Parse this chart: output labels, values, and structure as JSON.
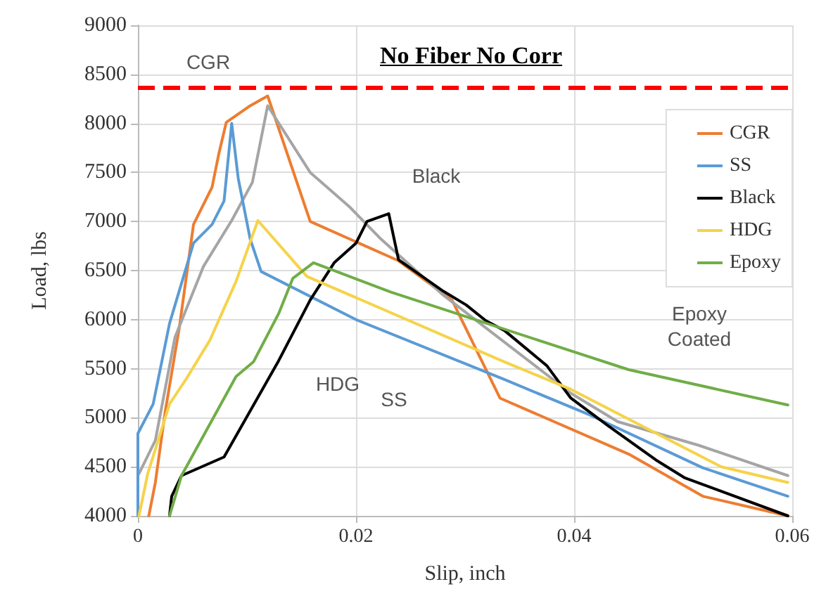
{
  "chart_data": {
    "type": "line",
    "title": "No Fiber No Corr",
    "xlabel": "Slip, inch",
    "ylabel": "Load, lbs",
    "xlim": [
      0,
      0.06
    ],
    "xticks": [
      0,
      0.02,
      0.04,
      0.06
    ],
    "ylim": [
      4000,
      9000
    ],
    "yticks": [
      4000,
      4500,
      5000,
      5500,
      6000,
      6500,
      7000,
      7500,
      8000,
      8500,
      9000
    ],
    "grid": true,
    "legend": "top right",
    "marker": "none",
    "line_style": "solid",
    "series": [
      {
        "name": "CGR",
        "color": "#ed7d31",
        "x": [
          0.001,
          0.0016,
          0.0025,
          0.0038,
          0.0051,
          0.0068,
          0.0074,
          0.0081,
          0.0103,
          0.0119,
          0.0158,
          0.0239,
          0.0288,
          0.0332,
          0.045,
          0.0518,
          0.0596
        ],
        "values": [
          4000,
          4340,
          5060,
          5920,
          6970,
          7350,
          7680,
          8010,
          8180,
          8280,
          7000,
          6600,
          6200,
          5200,
          4630,
          4200,
          4000
        ]
      },
      {
        "color": "#a5a5a5",
        "x": [
          0.0001,
          0.0016,
          0.0034,
          0.006,
          0.0086,
          0.0105,
          0.0119,
          0.0158,
          0.0194,
          0.0223,
          0.028,
          0.0397,
          0.044,
          0.0514,
          0.0596
        ],
        "values": [
          4430,
          4770,
          5820,
          6540,
          7010,
          7400,
          8180,
          7500,
          7150,
          6820,
          6250,
          5250,
          4960,
          4720,
          4410
        ]
      },
      {
        "name": "SS",
        "color": "#5b9bd5",
        "x": [
          0,
          0,
          0.0014,
          0.0029,
          0.0051,
          0.0068,
          0.0079,
          0.0086,
          0.0092,
          0.0103,
          0.0113,
          0.02,
          0.0336,
          0.0414,
          0.0518,
          0.0596
        ],
        "values": [
          4000,
          4840,
          5140,
          5960,
          6780,
          6970,
          7210,
          8000,
          7440,
          6820,
          6490,
          6000,
          5390,
          5030,
          4490,
          4200
        ]
      },
      {
        "name": "Black",
        "color": "#000000",
        "x": [
          0.0029,
          0.0031,
          0.004,
          0.0079,
          0.0129,
          0.0158,
          0.018,
          0.02,
          0.021,
          0.023,
          0.0239,
          0.028,
          0.0301,
          0.0319,
          0.0336,
          0.0375,
          0.0397,
          0.0431,
          0.0475,
          0.0501,
          0.0596
        ],
        "values": [
          4000,
          4200,
          4410,
          4600,
          5580,
          6200,
          6580,
          6780,
          7000,
          7080,
          6610,
          6290,
          6150,
          5990,
          5890,
          5530,
          5200,
          4920,
          4570,
          4390,
          4000
        ]
      },
      {
        "name": "HDG",
        "color": "#f5d34a",
        "x": [
          0.0001,
          0.0009,
          0.0029,
          0.0044,
          0.0066,
          0.009,
          0.011,
          0.0155,
          0.0336,
          0.0397,
          0.0535,
          0.0596
        ],
        "values": [
          4000,
          4430,
          5140,
          5390,
          5790,
          6390,
          7010,
          6440,
          5570,
          5290,
          4500,
          4340
        ]
      },
      {
        "name": "Epoxy",
        "color": "#70ad47",
        "x": [
          0.0029,
          0.004,
          0.009,
          0.0106,
          0.0129,
          0.0142,
          0.0161,
          0.0232,
          0.045,
          0.0596
        ],
        "values": [
          4000,
          4410,
          5420,
          5570,
          6060,
          6420,
          6580,
          6280,
          5490,
          5130
        ]
      }
    ],
    "ref_lines": [
      {
        "axis": "y",
        "value": 8370,
        "color": "#ff0000",
        "line_style": "dashed"
      }
    ],
    "annotations": [
      "CGR",
      "Black",
      "HDG",
      "SS",
      "Epoxy\nCoated"
    ]
  }
}
